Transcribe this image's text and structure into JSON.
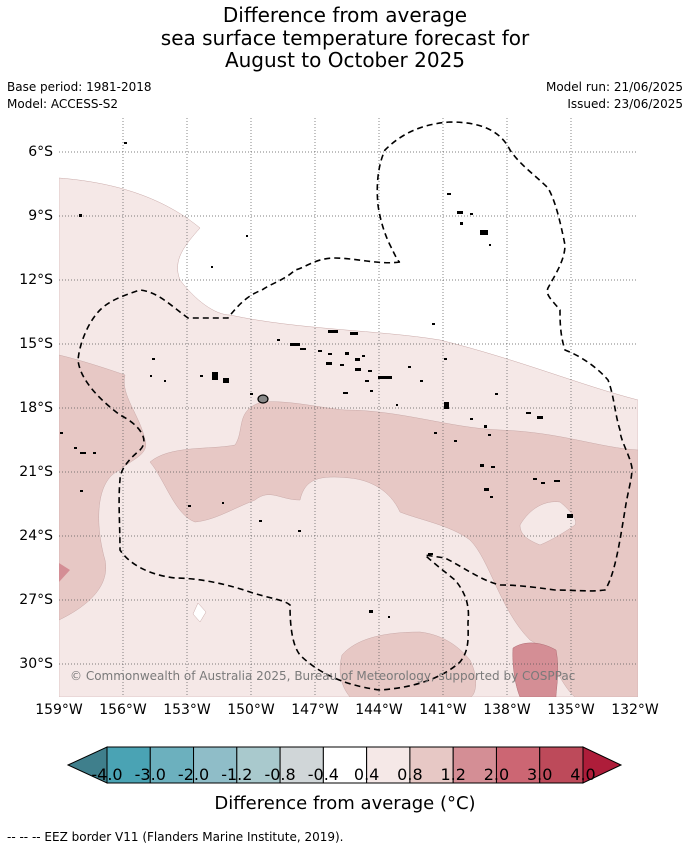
{
  "title": {
    "line1": "Difference from average",
    "line2": "sea surface temperature forecast for",
    "line3": "August to October 2025"
  },
  "meta": {
    "base_period": "Base period: 1981-2018",
    "model": "Model: ACCESS-S2",
    "model_run": "Model run: 21/06/2025",
    "issued": "Issued: 23/06/2025"
  },
  "map": {
    "lat_labels": [
      "6°S",
      "9°S",
      "12°S",
      "15°S",
      "18°S",
      "21°S",
      "24°S",
      "27°S",
      "30°S"
    ],
    "lon_labels": [
      "159°W",
      "156°W",
      "153°W",
      "150°W",
      "147°W",
      "144°W",
      "141°W",
      "138°W",
      "135°W",
      "132°W"
    ],
    "copyright": "© Commonwealth of Australia 2025, Bureau of Meteorology, supported by COSPPac",
    "colors": {
      "anomaly_0_4_0_8": "#f5e8e7",
      "anomaly_0_8_1_2": "#e7c8c5",
      "anomaly_1_2_2_0": "#d48e95",
      "anomaly_neutral": "#ffffff",
      "eez_border": "#000000",
      "grid": "#555555"
    }
  },
  "colorbar": {
    "ticks": [
      "-4.0",
      "-3.0",
      "-2.0",
      "-1.2",
      "-0.8",
      "-0.4",
      "0.4",
      "0.8",
      "1.2",
      "2.0",
      "3.0",
      "4.0"
    ],
    "colors": [
      "#3f7f8c",
      "#4aa3b4",
      "#6cb0be",
      "#8fbdc8",
      "#a9c9cd",
      "#d0d6d8",
      "#ffffff",
      "#f5e8e7",
      "#e7c8c5",
      "#d48e95",
      "#cc6673",
      "#bd4a5a",
      "#ae1d3a"
    ],
    "title": "Difference from average (°C)"
  },
  "footnote": "--  --  -- EEZ border V11 (Flanders Marine Institute, 2019)."
}
